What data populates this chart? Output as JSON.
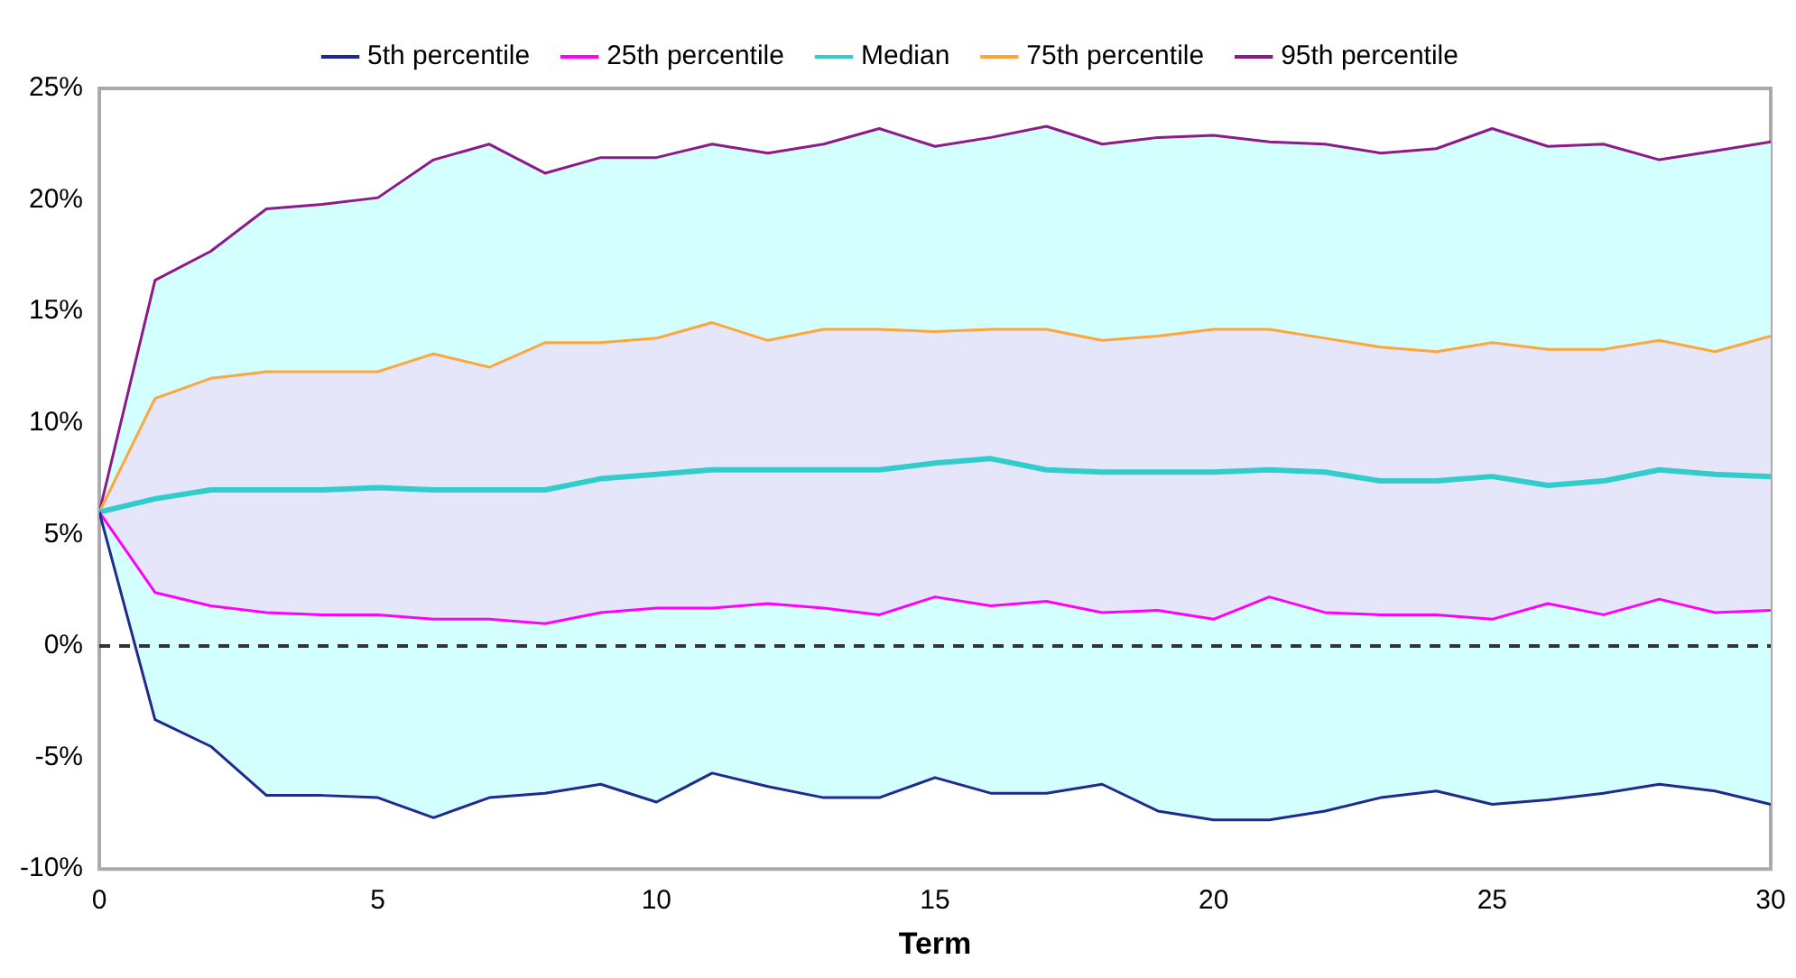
{
  "chart_data": {
    "type": "line",
    "xlabel": "Term",
    "x": [
      0,
      1,
      2,
      3,
      4,
      5,
      6,
      7,
      8,
      9,
      10,
      11,
      12,
      13,
      14,
      15,
      16,
      17,
      18,
      19,
      20,
      21,
      22,
      23,
      24,
      25,
      26,
      27,
      28,
      29,
      30
    ],
    "series": [
      {
        "name": "5th percentile",
        "color": "#1f2a8c",
        "values": [
          6,
          -3.3,
          -4.5,
          -6.7,
          -6.7,
          -6.8,
          -7.7,
          -6.8,
          -6.6,
          -6.2,
          -7.0,
          -5.7,
          -6.3,
          -6.8,
          -6.8,
          -5.9,
          -6.6,
          -6.6,
          -6.2,
          -7.4,
          -7.8,
          -7.8,
          -7.4,
          -6.8,
          -6.5,
          -7.1,
          -6.9,
          -6.6,
          -6.2,
          -6.5,
          -7.1
        ]
      },
      {
        "name": "25th percentile",
        "color": "#ff00ff",
        "values": [
          6,
          2.4,
          1.8,
          1.5,
          1.4,
          1.4,
          1.2,
          1.2,
          1.0,
          1.5,
          1.7,
          1.7,
          1.9,
          1.7,
          1.4,
          2.2,
          1.8,
          2.0,
          1.5,
          1.6,
          1.2,
          2.2,
          1.5,
          1.4,
          1.4,
          1.2,
          1.9,
          1.4,
          2.1,
          1.5,
          1.6
        ]
      },
      {
        "name": "Median",
        "color": "#33cccc",
        "values": [
          6,
          6.6,
          7.0,
          7.0,
          7.0,
          7.1,
          7.0,
          7.0,
          7.0,
          7.5,
          7.7,
          7.9,
          7.9,
          7.9,
          7.9,
          8.2,
          8.4,
          7.9,
          7.8,
          7.8,
          7.8,
          7.9,
          7.8,
          7.4,
          7.4,
          7.6,
          7.2,
          7.4,
          7.9,
          7.7,
          7.6
        ]
      },
      {
        "name": "75th percentile",
        "color": "#ffa53a",
        "values": [
          6,
          11.1,
          12.0,
          12.3,
          12.3,
          12.3,
          13.1,
          12.5,
          13.6,
          13.6,
          13.8,
          14.5,
          13.7,
          14.2,
          14.2,
          14.1,
          14.2,
          14.2,
          13.7,
          13.9,
          14.2,
          14.2,
          13.8,
          13.4,
          13.2,
          13.6,
          13.3,
          13.3,
          13.7,
          13.2,
          13.9
        ],
        "lower": [
          6,
          2.4,
          1.8,
          1.5,
          1.4,
          1.4,
          1.2,
          1.2,
          1.0,
          1.5,
          1.7,
          1.7,
          1.9,
          1.7,
          1.4,
          2.2,
          1.8,
          2.0,
          1.5,
          1.6,
          1.2,
          2.2,
          1.5,
          1.4,
          1.4,
          1.2,
          1.9,
          1.4,
          2.1,
          1.5,
          1.6
        ],
        "upper": [
          6,
          11.1,
          12.0,
          12.3,
          12.3,
          12.3,
          13.1,
          12.5,
          13.6,
          13.6,
          13.8,
          14.5,
          13.7,
          14.2,
          14.2,
          14.1,
          14.2,
          14.2,
          13.7,
          13.9,
          14.2,
          14.2,
          13.8,
          13.4,
          13.2,
          13.6,
          13.3,
          13.3,
          13.7,
          13.2,
          13.9
        ]
      },
      {
        "name": "95th percentile",
        "color": "#8b1a8b",
        "values": [
          6,
          16.4,
          17.7,
          19.6,
          19.8,
          20.1,
          21.8,
          22.5,
          21.2,
          21.9,
          21.9,
          22.5,
          22.1,
          22.5,
          23.2,
          22.4,
          22.8,
          23.3,
          22.5,
          22.8,
          22.9,
          22.6,
          22.5,
          22.1,
          22.3,
          23.2,
          22.4,
          22.5,
          21.8,
          22.2,
          22.6
        ],
        "lower": [
          6,
          -3.3,
          -4.5,
          -6.7,
          -6.7,
          -6.8,
          -7.7,
          -6.8,
          -6.6,
          -6.2,
          -7.0,
          -5.7,
          -6.3,
          -6.8,
          -6.8,
          -5.9,
          -6.6,
          -6.6,
          -6.2,
          -7.4,
          -7.8,
          -7.8,
          -7.4,
          -6.8,
          -6.5,
          -7.1,
          -6.9,
          -6.6,
          -6.2,
          -6.5,
          -7.1
        ],
        "upper": [
          6,
          16.4,
          17.7,
          19.6,
          19.8,
          20.1,
          21.8,
          22.5,
          21.2,
          21.9,
          21.9,
          22.5,
          22.1,
          22.5,
          23.2,
          22.4,
          22.8,
          23.3,
          22.5,
          22.8,
          22.9,
          22.6,
          22.5,
          22.1,
          22.3,
          23.2,
          22.4,
          22.5,
          21.8,
          22.2,
          22.6
        ]
      }
    ],
    "xlim": [
      0,
      30
    ],
    "xticks": [
      0,
      5,
      10,
      15,
      20,
      25,
      30
    ],
    "ylim": [
      -10,
      25
    ],
    "yticks": [
      {
        "value": -10,
        "label": "-10%"
      },
      {
        "value": -5,
        "label": "-5%"
      },
      {
        "value": 0,
        "label": "0%"
      },
      {
        "value": 5,
        "label": "5%"
      },
      {
        "value": 10,
        "label": "10%"
      },
      {
        "value": 15,
        "label": "15%"
      },
      {
        "value": 20,
        "label": "20%"
      },
      {
        "value": 25,
        "label": "25%"
      }
    ],
    "ref_lines": [
      {
        "axis": "y",
        "value": 0,
        "color": "#333333",
        "line_style": "dashed"
      }
    ],
    "grid": false,
    "legend": "top",
    "marker": "none",
    "line_style": "solid"
  }
}
